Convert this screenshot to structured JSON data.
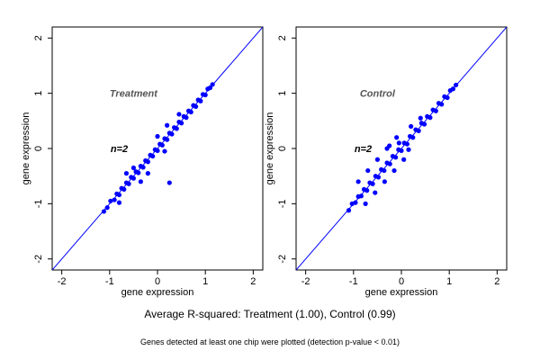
{
  "chart_data": [
    {
      "type": "scatter",
      "panel_label": "Treatment",
      "annotation": "n=2",
      "xlabel": "gene expression",
      "ylabel": "gene expression",
      "xlim": [
        -2.2,
        2.2
      ],
      "ylim": [
        -2.2,
        2.2
      ],
      "xticks": [
        -2,
        -1,
        0,
        1,
        2
      ],
      "yticks": [
        -2,
        -1,
        0,
        1,
        2
      ],
      "reference_line": {
        "slope": 1,
        "intercept": 0
      },
      "color": "#0000ff",
      "points": [
        [
          -1.12,
          -1.14
        ],
        [
          -1.05,
          -1.07
        ],
        [
          -0.98,
          -0.95
        ],
        [
          -0.9,
          -0.93
        ],
        [
          -0.85,
          -0.82
        ],
        [
          -0.8,
          -0.84
        ],
        [
          -0.75,
          -0.72
        ],
        [
          -0.7,
          -0.74
        ],
        [
          -0.65,
          -0.62
        ],
        [
          -0.6,
          -0.64
        ],
        [
          -0.55,
          -0.52
        ],
        [
          -0.5,
          -0.54
        ],
        [
          -0.45,
          -0.42
        ],
        [
          -0.4,
          -0.44
        ],
        [
          -0.35,
          -0.32
        ],
        [
          -0.3,
          -0.34
        ],
        [
          -0.25,
          -0.22
        ],
        [
          -0.2,
          -0.24
        ],
        [
          -0.15,
          -0.12
        ],
        [
          -0.1,
          -0.14
        ],
        [
          -0.05,
          -0.02
        ],
        [
          0.0,
          -0.04
        ],
        [
          0.05,
          0.08
        ],
        [
          0.1,
          0.06
        ],
        [
          0.15,
          0.18
        ],
        [
          0.2,
          0.16
        ],
        [
          0.25,
          0.28
        ],
        [
          0.3,
          0.26
        ],
        [
          0.35,
          0.38
        ],
        [
          0.4,
          0.36
        ],
        [
          0.45,
          0.48
        ],
        [
          0.5,
          0.46
        ],
        [
          0.55,
          0.58
        ],
        [
          0.6,
          0.56
        ],
        [
          0.65,
          0.68
        ],
        [
          0.7,
          0.66
        ],
        [
          0.75,
          0.78
        ],
        [
          0.8,
          0.76
        ],
        [
          0.85,
          0.88
        ],
        [
          0.9,
          0.86
        ],
        [
          0.95,
          0.98
        ],
        [
          1.0,
          0.97
        ],
        [
          1.05,
          1.08
        ],
        [
          1.1,
          1.1
        ],
        [
          1.15,
          1.16
        ],
        [
          -0.35,
          -0.6
        ],
        [
          -0.5,
          -0.35
        ],
        [
          -0.2,
          -0.45
        ],
        [
          0.15,
          -0.05
        ],
        [
          0.25,
          -0.62
        ],
        [
          0.45,
          0.62
        ],
        [
          0.2,
          0.42
        ],
        [
          -0.65,
          -0.45
        ],
        [
          -0.8,
          -0.98
        ],
        [
          0.0,
          0.22
        ]
      ]
    },
    {
      "type": "scatter",
      "panel_label": "Control",
      "annotation": "n=2",
      "xlabel": "gene expression",
      "ylabel": "gene expression",
      "xlim": [
        -2.2,
        2.2
      ],
      "ylim": [
        -2.2,
        2.2
      ],
      "xticks": [
        -2,
        -1,
        0,
        1,
        2
      ],
      "yticks": [
        -2,
        -1,
        0,
        1,
        2
      ],
      "reference_line": {
        "slope": 1,
        "intercept": 0
      },
      "color": "#0000ff",
      "points": [
        [
          -1.1,
          -1.12
        ],
        [
          -1.03,
          -1.0
        ],
        [
          -0.96,
          -0.98
        ],
        [
          -0.9,
          -0.87
        ],
        [
          -0.84,
          -0.86
        ],
        [
          -0.78,
          -0.74
        ],
        [
          -0.72,
          -0.76
        ],
        [
          -0.66,
          -0.62
        ],
        [
          -0.6,
          -0.64
        ],
        [
          -0.54,
          -0.5
        ],
        [
          -0.48,
          -0.52
        ],
        [
          -0.42,
          -0.38
        ],
        [
          -0.36,
          -0.4
        ],
        [
          -0.3,
          -0.26
        ],
        [
          -0.24,
          -0.28
        ],
        [
          -0.18,
          -0.14
        ],
        [
          -0.12,
          -0.16
        ],
        [
          -0.06,
          -0.02
        ],
        [
          0.0,
          -0.04
        ],
        [
          0.06,
          0.1
        ],
        [
          0.12,
          0.08
        ],
        [
          0.18,
          0.22
        ],
        [
          0.24,
          0.2
        ],
        [
          0.3,
          0.34
        ],
        [
          0.36,
          0.32
        ],
        [
          0.42,
          0.46
        ],
        [
          0.48,
          0.44
        ],
        [
          0.54,
          0.58
        ],
        [
          0.6,
          0.56
        ],
        [
          0.66,
          0.7
        ],
        [
          0.72,
          0.68
        ],
        [
          0.78,
          0.82
        ],
        [
          0.84,
          0.8
        ],
        [
          0.9,
          0.94
        ],
        [
          0.96,
          0.92
        ],
        [
          1.02,
          1.05
        ],
        [
          1.08,
          1.08
        ],
        [
          1.14,
          1.15
        ],
        [
          -0.9,
          -0.6
        ],
        [
          -0.7,
          -0.4
        ],
        [
          -0.5,
          -0.2
        ],
        [
          -0.3,
          0.0
        ],
        [
          -0.1,
          0.2
        ],
        [
          -0.75,
          -1.0
        ],
        [
          -0.55,
          -0.8
        ],
        [
          -0.35,
          -0.6
        ],
        [
          -0.15,
          -0.4
        ],
        [
          0.05,
          -0.2
        ],
        [
          -0.25,
          0.05
        ],
        [
          -0.05,
          0.1
        ],
        [
          0.2,
          0.4
        ],
        [
          0.4,
          0.55
        ],
        [
          0.15,
          -0.02
        ]
      ]
    }
  ],
  "caption": "Average R-squared: Treatment (1.00), Control (0.99)",
  "footnote": "Genes detected at least one chip were plotted (detection p-value < 0.01)"
}
